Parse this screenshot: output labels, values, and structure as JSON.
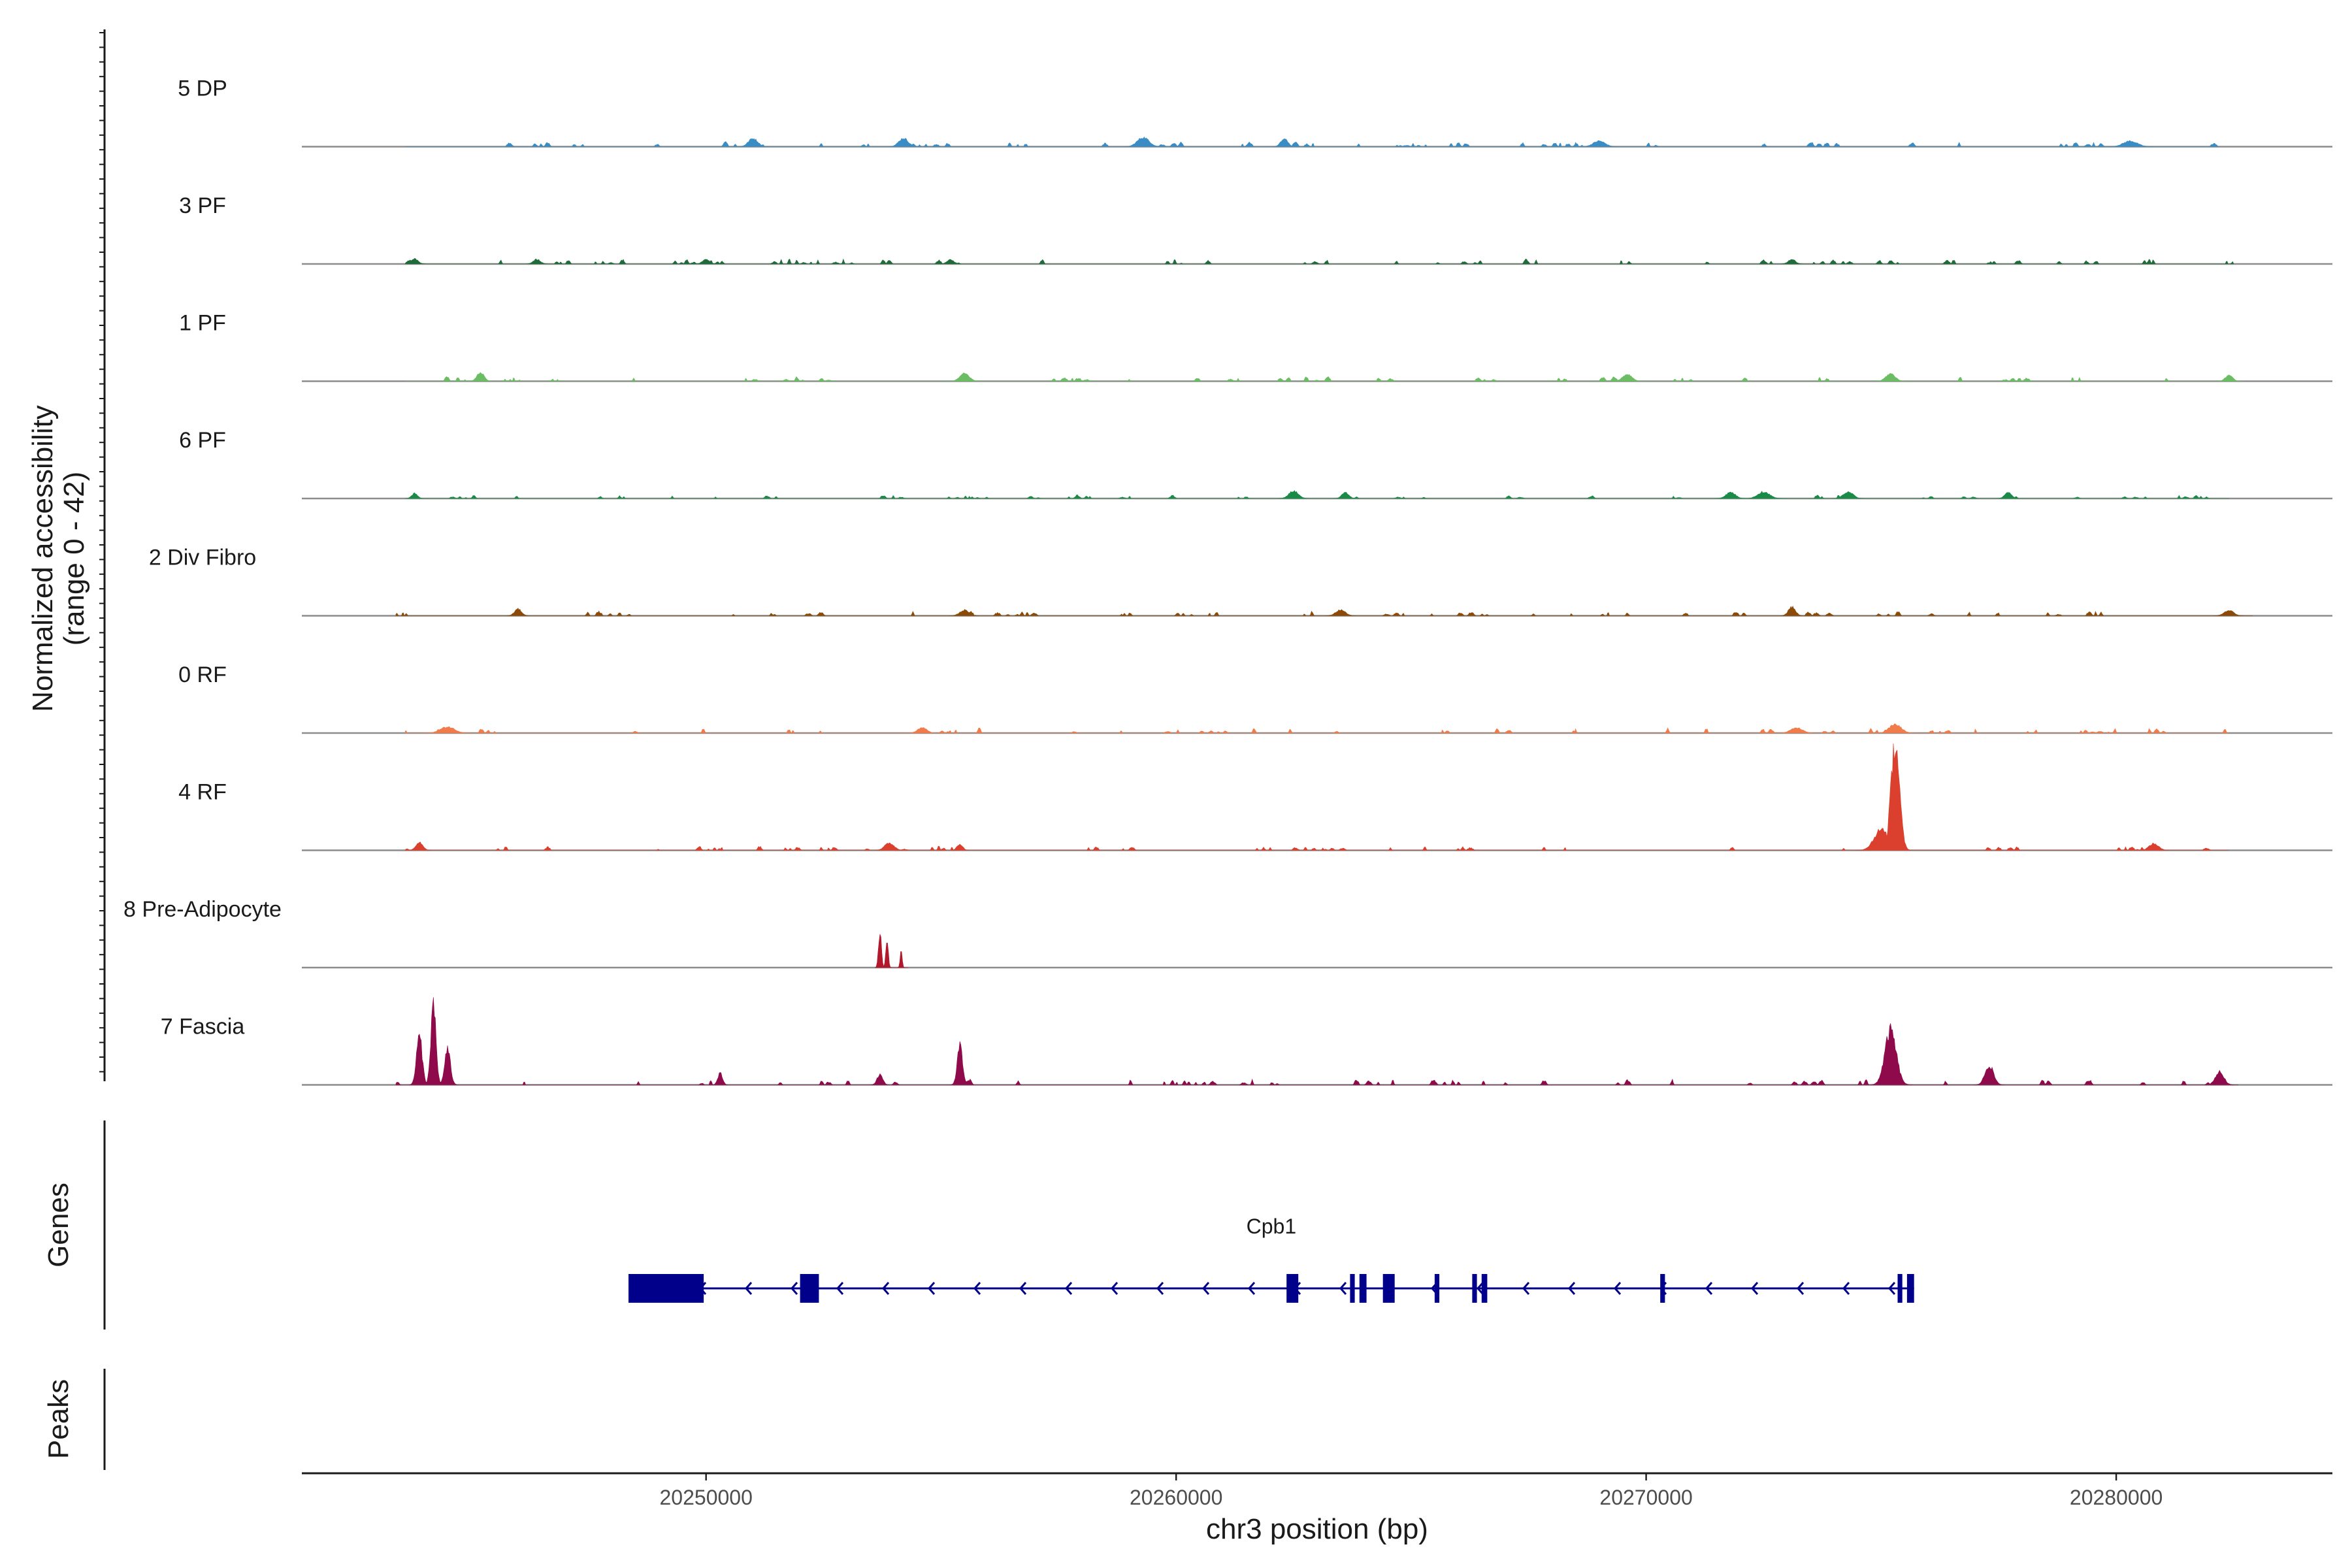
{
  "chart_data": {
    "type": "area",
    "title": "",
    "xlabel": "chr3 position (bp)",
    "ylabel": "Normalized accessibility",
    "ylabel_range": "(range 0 - 42)",
    "ylim": [
      0,
      42
    ],
    "xlim": [
      20241400,
      20284600
    ],
    "x_ticks": [
      20250000,
      20260000,
      20270000,
      20280000
    ],
    "x_tick_labels": [
      "20250000",
      "20260000",
      "20270000",
      "20280000"
    ],
    "region_start": 20241400,
    "region_end": 20284600,
    "tracks": [
      {
        "name": "5 DP",
        "color": "#3a8cc4",
        "start": 20243600,
        "end": 20282200,
        "noise_max": 1.9,
        "peaks": [
          [
            20251000,
            3.2,
            200
          ],
          [
            20254200,
            3.3,
            200
          ],
          [
            20259300,
            3.6,
            250
          ],
          [
            20262300,
            3.0,
            150
          ],
          [
            20269000,
            2.2,
            250
          ],
          [
            20280300,
            2.2,
            300
          ]
        ]
      },
      {
        "name": "3 PF",
        "color": "#1f6b3a",
        "start": 20243600,
        "end": 20282500,
        "noise_max": 1.8,
        "peaks": [
          [
            20243800,
            2.0,
            150
          ],
          [
            20246400,
            1.8,
            150
          ],
          [
            20250000,
            1.8,
            150
          ],
          [
            20255200,
            1.6,
            150
          ],
          [
            20273100,
            1.8,
            150
          ]
        ]
      },
      {
        "name": "1 PF",
        "color": "#6abd63",
        "start": 20243600,
        "end": 20282700,
        "noise_max": 1.8,
        "peaks": [
          [
            20245200,
            3.4,
            150
          ],
          [
            20255500,
            3.0,
            200
          ],
          [
            20269600,
            2.7,
            200
          ],
          [
            20275200,
            2.9,
            200
          ],
          [
            20282400,
            2.4,
            150
          ]
        ]
      },
      {
        "name": "6 PF",
        "color": "#1a8a47",
        "start": 20243600,
        "end": 20282400,
        "noise_max": 1.4,
        "peaks": [
          [
            20243800,
            2.0,
            120
          ],
          [
            20262500,
            2.9,
            200
          ],
          [
            20263600,
            2.3,
            150
          ],
          [
            20271800,
            2.4,
            200
          ],
          [
            20272500,
            2.6,
            250
          ],
          [
            20274300,
            2.7,
            200
          ],
          [
            20277700,
            2.2,
            150
          ]
        ]
      },
      {
        "name": "2 Div Fibro",
        "color": "#8b4a08",
        "start": 20243400,
        "end": 20282900,
        "noise_max": 1.8,
        "peaks": [
          [
            20246000,
            2.6,
            150
          ],
          [
            20255500,
            2.2,
            200
          ],
          [
            20263500,
            2.3,
            200
          ],
          [
            20273100,
            3.4,
            150
          ],
          [
            20282400,
            2.1,
            200
          ]
        ]
      },
      {
        "name": "0 RF",
        "color": "#f07b4b",
        "start": 20243600,
        "end": 20282400,
        "noise_max": 1.9,
        "peaks": [
          [
            20244500,
            2.4,
            300
          ],
          [
            20254600,
            2.0,
            200
          ],
          [
            20273200,
            2.0,
            250
          ],
          [
            20275300,
            3.4,
            250
          ]
        ]
      },
      {
        "name": "4 RF",
        "color": "#db3f2d",
        "start": 20243600,
        "end": 20282400,
        "noise_max": 1.6,
        "peaks": [
          [
            20243900,
            3.2,
            150
          ],
          [
            20253900,
            2.8,
            200
          ],
          [
            20255400,
            2.4,
            120
          ],
          [
            20275300,
            42.0,
            180
          ],
          [
            20275000,
            8.0,
            300
          ],
          [
            20280800,
            2.6,
            200
          ]
        ]
      },
      {
        "name": "8 Pre-Adipocyte",
        "color": "#b2182b",
        "start": 20253600,
        "end": 20254300,
        "noise_max": 0,
        "peaks": [
          [
            20253700,
            14.0,
            60
          ],
          [
            20253850,
            12.0,
            50
          ],
          [
            20254150,
            7.5,
            40
          ]
        ]
      },
      {
        "name": "7 Fascia",
        "color": "#8e0a4a",
        "start": 20243400,
        "end": 20282600,
        "noise_max": 2.2,
        "peaks": [
          [
            20243900,
            19.0,
            120
          ],
          [
            20244200,
            30.0,
            110
          ],
          [
            20244500,
            14.0,
            120
          ],
          [
            20255400,
            15.0,
            110
          ],
          [
            20275200,
            21.0,
            240
          ],
          [
            20277300,
            7.5,
            180
          ],
          [
            20282200,
            5.0,
            180
          ],
          [
            20250300,
            4.5,
            100
          ],
          [
            20253700,
            4.0,
            120
          ]
        ]
      }
    ],
    "gene_track_label": "Genes",
    "genes": [
      {
        "name": "Cpb1",
        "strand": "-",
        "start": 20248350,
        "end": 20275700,
        "exons": [
          [
            20248350,
            20249950
          ],
          [
            20252000,
            20252400
          ],
          [
            20262350,
            20262600
          ],
          [
            20263700,
            20263800
          ],
          [
            20263900,
            20264050
          ],
          [
            20264400,
            20264650
          ],
          [
            20265500,
            20265600
          ],
          [
            20266300,
            20266400
          ],
          [
            20266500,
            20266620
          ],
          [
            20270300,
            20270400
          ],
          [
            20275350,
            20275450
          ],
          [
            20275550,
            20275700
          ]
        ]
      }
    ],
    "peaks_track_label": "Peaks"
  }
}
